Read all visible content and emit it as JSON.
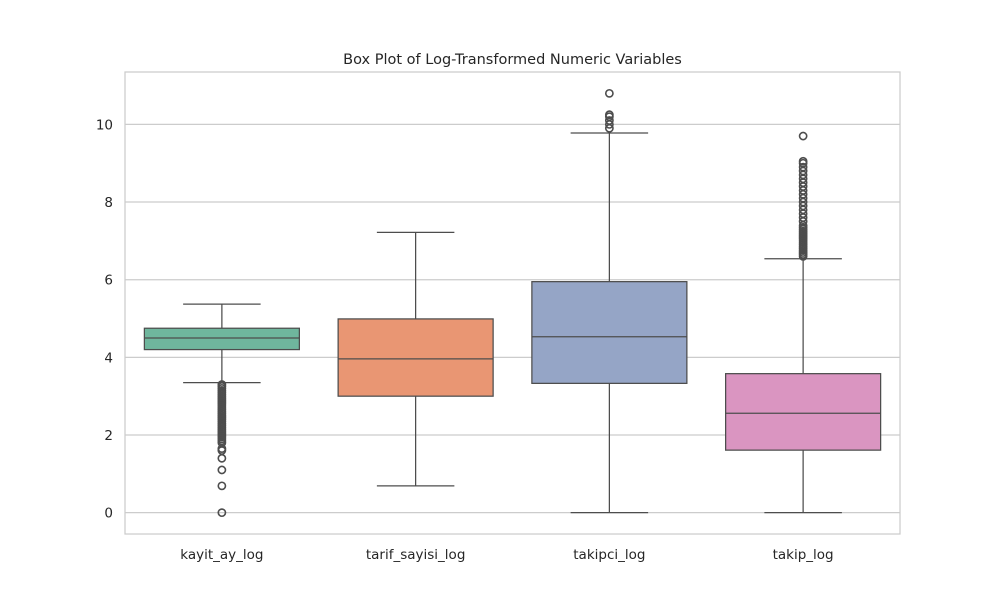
{
  "chart_data": {
    "type": "box",
    "title": "Box Plot of Log-Transformed Numeric Variables",
    "xlabel": "",
    "ylabel": "",
    "ylim": [
      -0.55,
      11.35
    ],
    "yticks": [
      0,
      2,
      4,
      6,
      8,
      10
    ],
    "grid": "horizontal",
    "categories": [
      "kayit_ay_log",
      "tarif_sayisi_log",
      "takipci_log",
      "takip_log"
    ],
    "colors": [
      "#6fb69d",
      "#e99673",
      "#95a5c6",
      "#da95c1"
    ],
    "boxes": [
      {
        "category": "kayit_ay_log",
        "whisker_low": 3.35,
        "q1": 4.2,
        "median": 4.5,
        "q3": 4.75,
        "whisker_high": 5.37,
        "outliers": [
          3.3,
          3.25,
          3.2,
          3.15,
          3.1,
          3.05,
          3.0,
          2.95,
          2.9,
          2.85,
          2.8,
          2.75,
          2.7,
          2.65,
          2.6,
          2.55,
          2.5,
          2.45,
          2.4,
          2.35,
          2.3,
          2.25,
          2.2,
          2.15,
          2.1,
          2.05,
          2.0,
          1.95,
          1.9,
          1.85,
          1.8,
          1.65,
          1.6,
          1.4,
          1.1,
          0.69,
          0.0
        ]
      },
      {
        "category": "tarif_sayisi_log",
        "whisker_low": 0.69,
        "q1": 3.0,
        "median": 3.96,
        "q3": 4.99,
        "whisker_high": 7.22,
        "outliers": []
      },
      {
        "category": "takipci_log",
        "whisker_low": 0.0,
        "q1": 3.33,
        "median": 4.53,
        "q3": 5.95,
        "whisker_high": 9.78,
        "outliers": [
          9.9,
          10.0,
          10.1,
          10.2,
          10.25,
          10.8
        ]
      },
      {
        "category": "takip_log",
        "whisker_low": 0.0,
        "q1": 1.61,
        "median": 2.56,
        "q3": 3.58,
        "whisker_high": 6.54,
        "outliers": [
          6.6,
          6.65,
          6.7,
          6.75,
          6.8,
          6.85,
          6.9,
          6.95,
          7.0,
          7.05,
          7.1,
          7.15,
          7.2,
          7.25,
          7.3,
          7.35,
          7.4,
          7.5,
          7.6,
          7.7,
          7.8,
          7.9,
          8.0,
          8.1,
          8.2,
          8.3,
          8.4,
          8.5,
          8.6,
          8.7,
          8.8,
          8.9,
          9.0,
          9.05,
          9.7
        ]
      }
    ]
  }
}
